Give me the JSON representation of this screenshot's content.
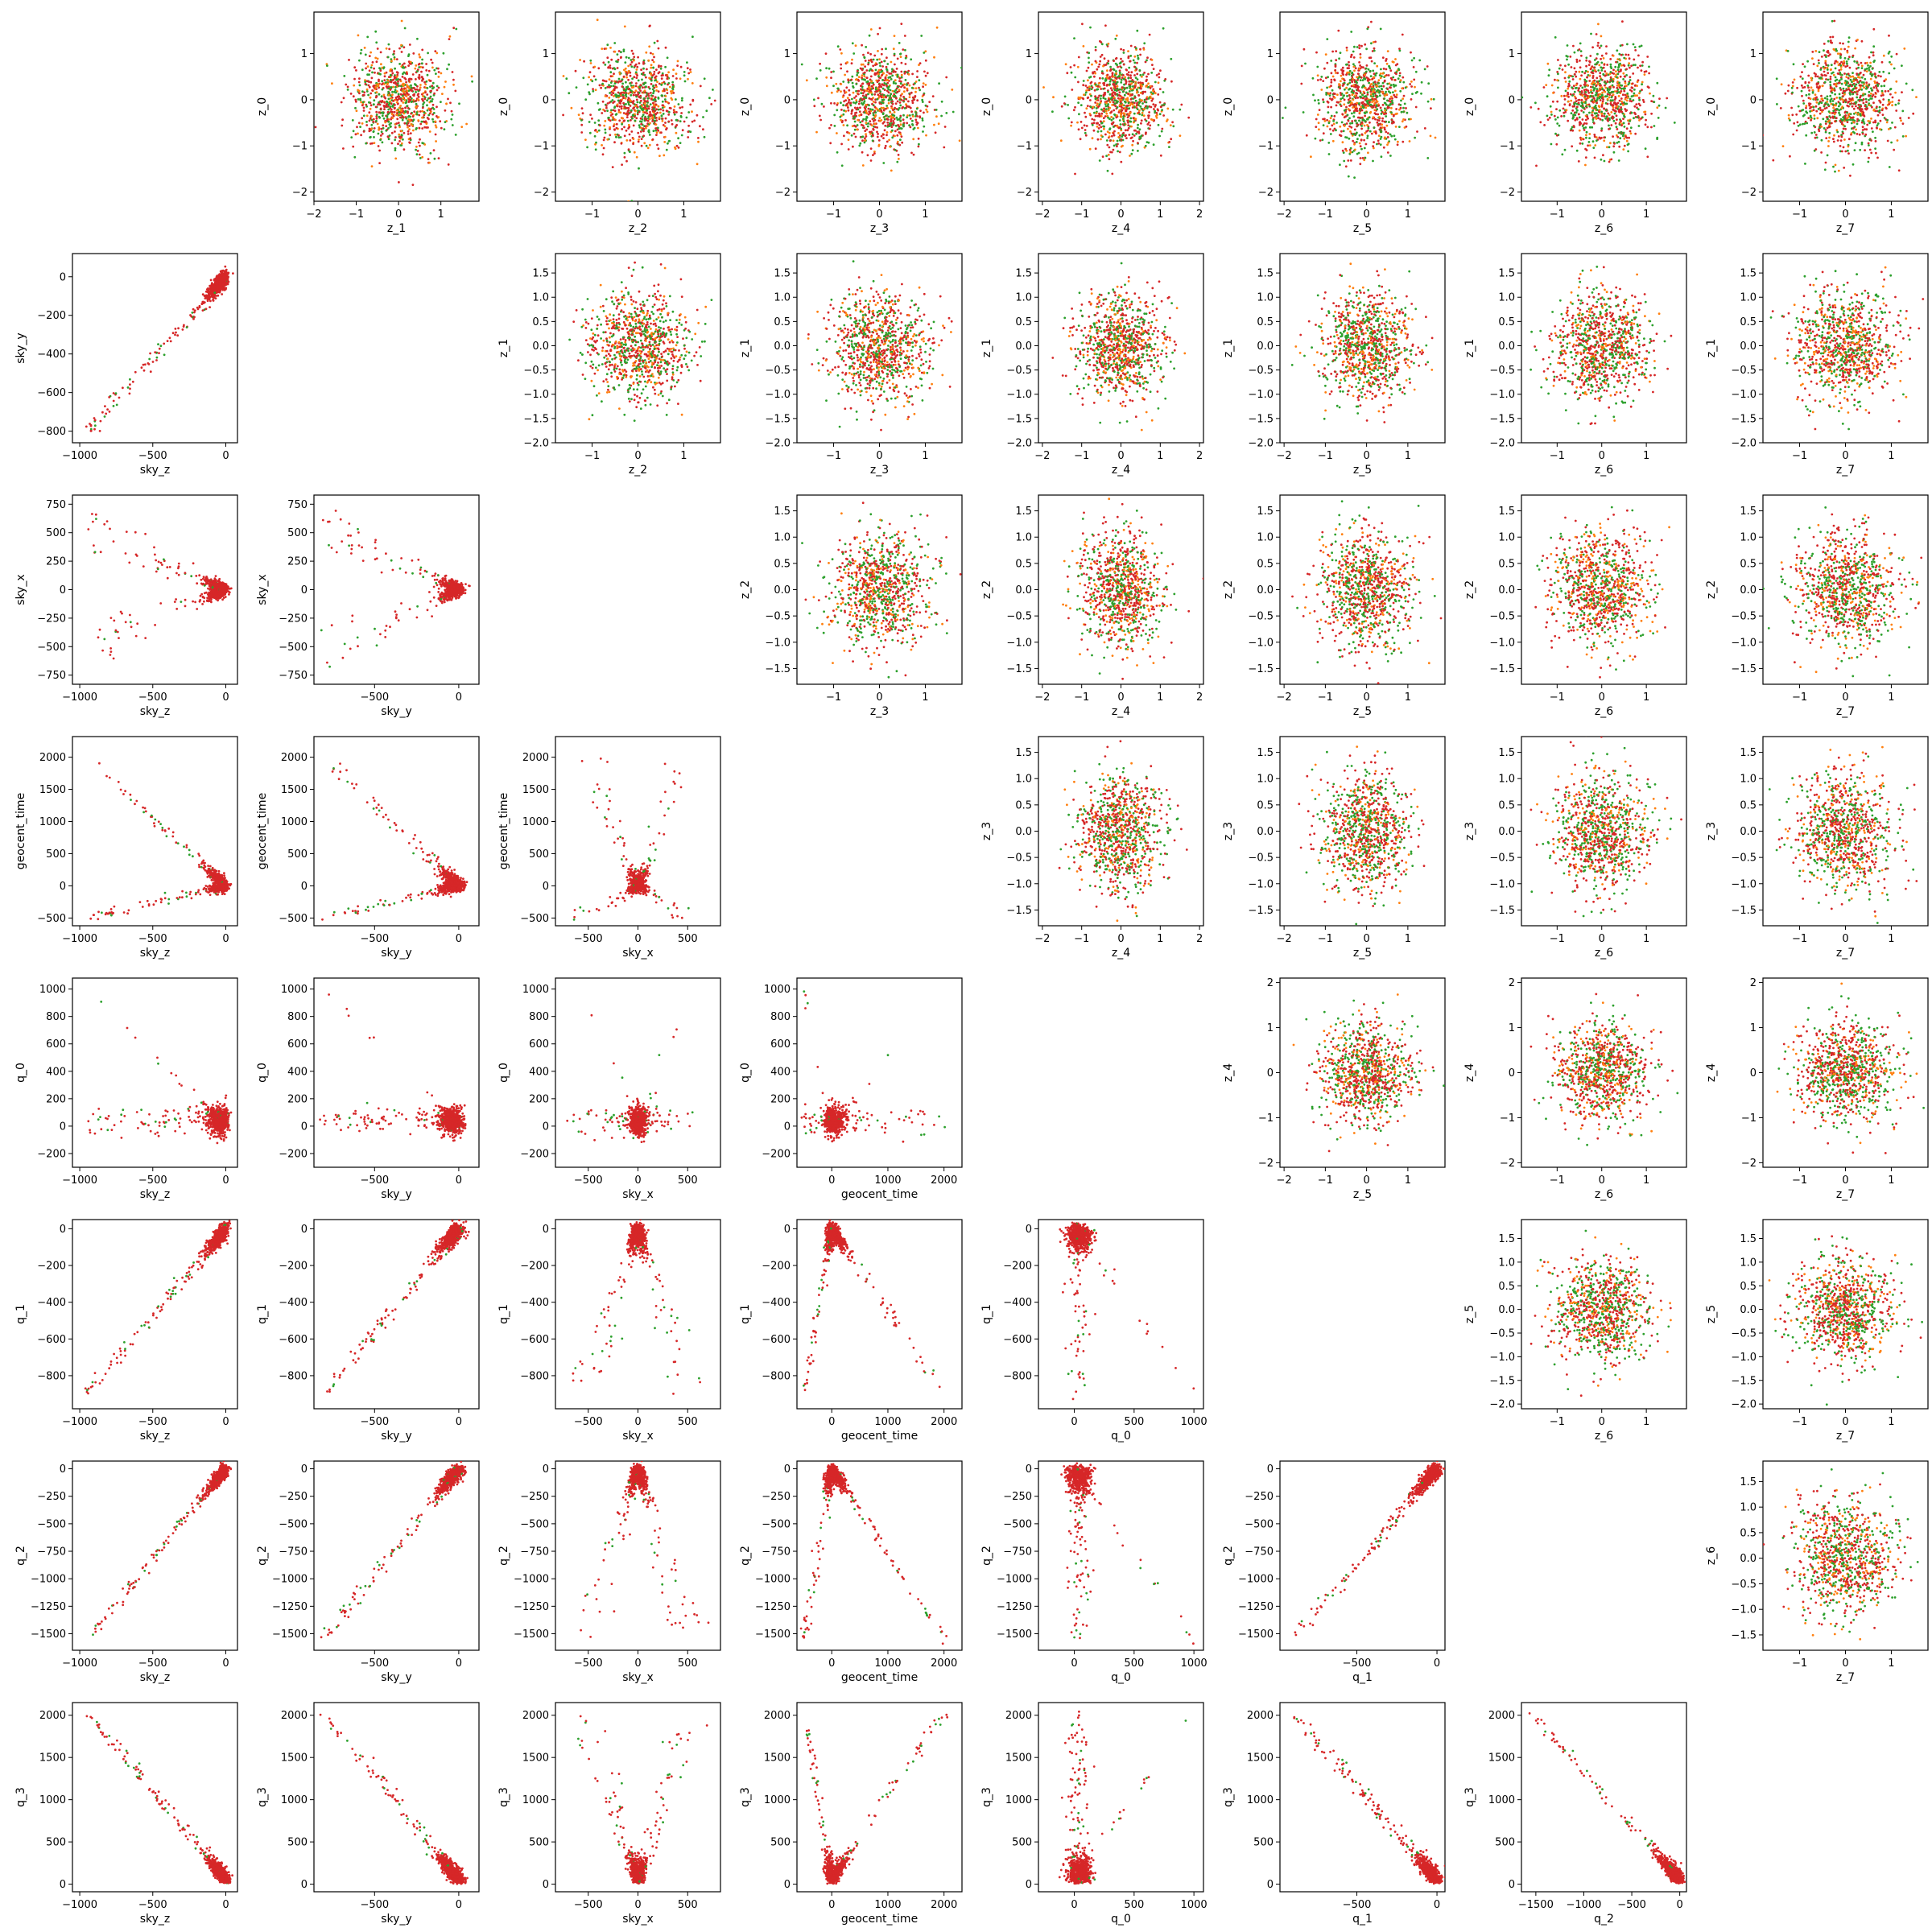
{
  "figure": {
    "type": "pairwise-scatter-matrix",
    "marker_size": "tiny dots",
    "series_colors": [
      "#2ca02c",
      "#ff7f0e",
      "#d62728"
    ],
    "variables": [
      "sky_z",
      "sky_y",
      "sky_x",
      "geocent_time",
      "q_0",
      "q_1",
      "q_2",
      "q_3",
      "z_0",
      "z_1",
      "z_2",
      "z_3",
      "z_4",
      "z_5",
      "z_6",
      "z_7"
    ]
  },
  "chart_data": {
    "type": "scatter",
    "lower_triangle": {
      "description_rows": [
        "sky_y",
        "sky_x",
        "geocent_time",
        "q_0",
        "q_1",
        "q_2",
        "q_3"
      ],
      "description_cols": [
        "sky_z",
        "sky_y",
        "sky_x",
        "geocent_time",
        "q_0",
        "q_1",
        "q_2"
      ],
      "axes": {
        "sky_z": {
          "lim": [
            -1050,
            80
          ],
          "ticks": [
            -1000,
            -500,
            0
          ],
          "tick_labels": [
            "−1000",
            "−500",
            "0"
          ]
        },
        "sky_y": {
          "lim": [
            -860,
            120
          ],
          "ticks": [
            -800,
            -600,
            -400,
            -200,
            0
          ],
          "tick_labels": [
            "−800",
            "−600",
            "−400",
            "−200",
            "0"
          ],
          "xticks": [
            -500,
            0
          ],
          "xtick_labels": [
            "−500",
            "0"
          ]
        },
        "sky_x": {
          "lim": [
            -830,
            830
          ],
          "ticks": [
            -750,
            -500,
            -250,
            0,
            250,
            500,
            750
          ],
          "tick_labels": [
            "−750",
            "−500",
            "−250",
            "0",
            "250",
            "500",
            "750"
          ],
          "xticks": [
            -500,
            0,
            500
          ],
          "xtick_labels": [
            "−500",
            "0",
            "500"
          ]
        },
        "geocent_time": {
          "lim": [
            -620,
            2320
          ],
          "ticks": [
            -500,
            0,
            500,
            1000,
            1500,
            2000
          ],
          "tick_labels": [
            "−500",
            "0",
            "500",
            "1000",
            "1500",
            "2000"
          ],
          "xticks": [
            0,
            1000,
            2000
          ],
          "xtick_labels": [
            "0",
            "1000",
            "2000"
          ]
        },
        "q_0": {
          "lim": [
            -300,
            1080
          ],
          "ticks": [
            -200,
            0,
            200,
            400,
            600,
            800,
            1000
          ],
          "tick_labels": [
            "−200",
            "0",
            "200",
            "400",
            "600",
            "800",
            "1000"
          ],
          "xticks": [
            0,
            500,
            1000
          ],
          "xtick_labels": [
            "0",
            "500",
            "1000"
          ]
        },
        "q_1": {
          "lim": [
            -980,
            50
          ],
          "ticks": [
            -800,
            -600,
            -400,
            -200,
            0
          ],
          "tick_labels": [
            "−800",
            "−600",
            "−400",
            "−200",
            "0"
          ],
          "xticks": [
            -500,
            0
          ],
          "xtick_labels": [
            "−500",
            "0"
          ]
        },
        "q_2": {
          "lim": [
            -1650,
            70
          ],
          "ticks": [
            -1500,
            -1250,
            -1000,
            -750,
            -500,
            -250,
            0
          ],
          "tick_labels": [
            "−1500",
            "−1250",
            "−1000",
            "−750",
            "−500",
            "−250",
            "0"
          ],
          "xticks": [
            -1500,
            -1000,
            -500,
            0
          ],
          "xtick_labels": [
            "−1500",
            "−1000",
            "−500",
            "0"
          ]
        },
        "q_3": {
          "lim": [
            -90,
            2150
          ],
          "ticks": [
            0,
            500,
            1000,
            1500,
            2000
          ],
          "tick_labels": [
            "0",
            "500",
            "1000",
            "1500",
            "2000"
          ]
        }
      },
      "trend_relations": [
        {
          "x": "sky_z",
          "y": "sky_y",
          "relation": "positive, dense cluster near (0,0)"
        },
        {
          "x": "sky_y",
          "y": "q_2",
          "relation": "positive linear"
        },
        {
          "x": "q_1",
          "y": "q_2",
          "relation": "positive linear"
        },
        {
          "x": "q_2",
          "y": "q_3",
          "relation": "negative linear"
        },
        {
          "x": "q_1",
          "y": "q_3",
          "relation": "negative linear"
        },
        {
          "x": "sky_x",
          "y": "geocent_time",
          "relation": "V-shape centered at sky_x=0"
        }
      ]
    },
    "upper_triangle": {
      "rows": [
        "z_0",
        "z_1",
        "z_2",
        "z_3",
        "z_4",
        "z_5",
        "z_6"
      ],
      "cols": [
        "z_1",
        "z_2",
        "z_3",
        "z_4",
        "z_5",
        "z_6",
        "z_7"
      ],
      "distribution": "isotropic Gaussian blobs centered at (0,0), std ~0.5",
      "axes": {
        "z_0": {
          "lim": [
            -2.2,
            1.9
          ],
          "ticks": [
            -2,
            -1,
            0,
            1
          ],
          "tick_labels": [
            "−2",
            "−1",
            "0",
            "1"
          ]
        },
        "z_1": {
          "lim": [
            -2.0,
            1.9
          ],
          "ticks": [
            -2.0,
            -1.5,
            -1.0,
            -0.5,
            0.0,
            0.5,
            1.0,
            1.5
          ],
          "tick_labels": [
            "−2.0",
            "−1.5",
            "−1.0",
            "−0.5",
            "0.0",
            "0.5",
            "1.0",
            "1.5"
          ],
          "xticks": [
            -2,
            -1,
            0,
            1
          ],
          "xtick_labels": [
            "−2",
            "−1",
            "0",
            "1"
          ]
        },
        "z_2": {
          "lim": [
            -1.8,
            1.8
          ],
          "ticks": [
            -1.5,
            -1.0,
            -0.5,
            0.0,
            0.5,
            1.0,
            1.5
          ],
          "tick_labels": [
            "−1.5",
            "−1.0",
            "−0.5",
            "0.0",
            "0.5",
            "1.0",
            "1.5"
          ],
          "xticks": [
            -1,
            0,
            1
          ],
          "xtick_labels": [
            "−1",
            "0",
            "1"
          ]
        },
        "z_3": {
          "lim": [
            -1.8,
            1.8
          ],
          "ticks": [
            -1.5,
            -1.0,
            -0.5,
            0.0,
            0.5,
            1.0,
            1.5
          ],
          "tick_labels": [
            "−1.5",
            "−1.0",
            "−0.5",
            "0.0",
            "0.5",
            "1.0",
            "1.5"
          ],
          "xticks": [
            -1,
            0,
            1
          ],
          "xtick_labels": [
            "−1",
            "0",
            "1"
          ]
        },
        "z_4": {
          "lim": [
            -2.1,
            2.1
          ],
          "ticks": [
            -2,
            -1,
            0,
            1,
            2
          ],
          "tick_labels": [
            "−2",
            "−1",
            "0",
            "1",
            "2"
          ]
        },
        "z_5": {
          "lim": [
            -2.1,
            1.9
          ],
          "ticks": [
            -2.0,
            -1.5,
            -1.0,
            -0.5,
            0.0,
            0.5,
            1.0,
            1.5
          ],
          "tick_labels": [
            "−2.0",
            "−1.5",
            "−1.0",
            "−0.5",
            "0.0",
            "0.5",
            "1.0",
            "1.5"
          ],
          "xticks": [
            -2,
            -1,
            0,
            1
          ],
          "xtick_labels": [
            "−2",
            "−1",
            "0",
            "1"
          ]
        },
        "z_6": {
          "lim": [
            -1.8,
            1.9
          ],
          "ticks": [
            -1.5,
            -1.0,
            -0.5,
            0.0,
            0.5,
            1.0,
            1.5
          ],
          "tick_labels": [
            "−1.5",
            "−1.0",
            "−0.5",
            "0.0",
            "0.5",
            "1.0",
            "1.5"
          ],
          "xticks": [
            -1,
            0,
            1
          ],
          "xtick_labels": [
            "−1",
            "0",
            "1"
          ]
        },
        "z_7": {
          "lim": [
            -1.8,
            1.8
          ],
          "xticks": [
            -1,
            0,
            1
          ],
          "xtick_labels": [
            "−1",
            "0",
            "1"
          ]
        }
      }
    }
  }
}
